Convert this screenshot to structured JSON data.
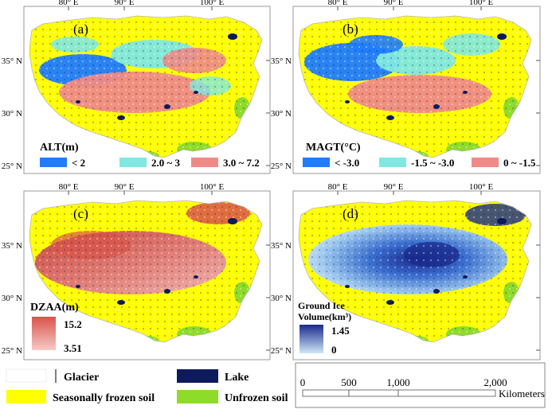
{
  "colors": {
    "seasonal": "#ffff00",
    "unfrozen": "#8fdb2a",
    "lake": "#0d1a5c",
    "glacier": "#ffffff",
    "alt_low": "#1f7cff",
    "alt_mid": "#7fe8e0",
    "alt_high": "#f08a86",
    "dz_high": "#d9544a",
    "dz_low": "#f6c9c6",
    "ice_high": "#1a2a8c",
    "ice_low": "#cfe7f7"
  },
  "panels": [
    {
      "id": "a",
      "label": "(a)",
      "lon_ticks": [
        "80° E",
        "90° E",
        "100° E"
      ],
      "lat_ticks": [
        "35° N",
        "30° N",
        "25° N"
      ],
      "legend_title": "ALT(m)",
      "legend_items": [
        "< 2",
        "2.0 ~ 3",
        "3.0 ~ 7.2"
      ]
    },
    {
      "id": "b",
      "label": "(b)",
      "lon_ticks": [
        "80° E",
        "90° E",
        "100° E"
      ],
      "lat_ticks": [
        "35° N",
        "30° N",
        "25° N"
      ],
      "legend_title": "MAGT(°C)",
      "legend_items": [
        "< -3.0",
        "-1.5 ~ -3.0",
        "0 ~ -1.5"
      ]
    },
    {
      "id": "c",
      "label": "(c)",
      "lon_ticks": [
        "80° E",
        "90° E",
        "100° E"
      ],
      "lat_ticks": [
        "35° N",
        "30° N",
        "25° N"
      ],
      "legend_title": "DZAA(m)",
      "legend_max": "15.2",
      "legend_min": "3.51"
    },
    {
      "id": "d",
      "label": "(d)",
      "lon_ticks": [
        "80° E",
        "90° E",
        "100° E"
      ],
      "lat_ticks": [
        "35° N",
        "30° N",
        "25° N"
      ],
      "legend_title_1": "Ground Ice",
      "legend_title_2": "Volume(km³)",
      "legend_max": "1.45",
      "legend_min": "0"
    }
  ],
  "bottom_legend": {
    "glacier": "Glacier",
    "lake": "Lake",
    "seasonal": "Seasonally frozen soil",
    "unfrozen": "Unfrozen soil"
  },
  "scale_bar": {
    "ticks": [
      "0",
      "500",
      "1,000",
      "2,000"
    ],
    "unit": "Kilometers"
  }
}
